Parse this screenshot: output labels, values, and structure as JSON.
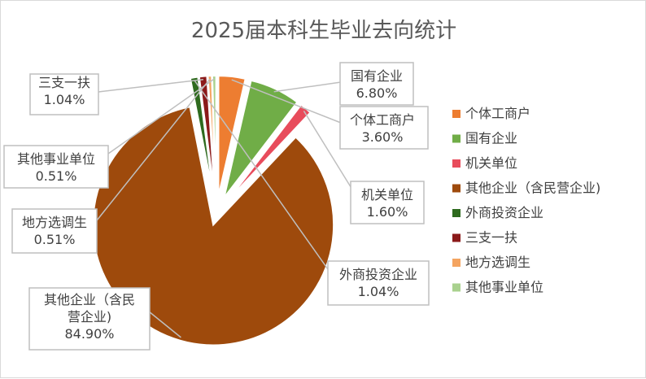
{
  "chart_data": {
    "type": "pie",
    "title": "2025届本科生毕业去向统计",
    "legend_position": "right",
    "slices": [
      {
        "name": "个体工商户",
        "value": 3.6,
        "label_lines": [
          "个体工商户",
          "3.60%"
        ],
        "color": "#ED7D31"
      },
      {
        "name": "国有企业",
        "value": 6.8,
        "label_lines": [
          "国有企业",
          "6.80%"
        ],
        "color": "#70AD47"
      },
      {
        "name": "机关单位",
        "value": 1.6,
        "label_lines": [
          "机关单位",
          "1.60%"
        ],
        "color": "#E84C5C"
      },
      {
        "name": "其他企业（含民营企业)",
        "value": 84.9,
        "label_lines": [
          "其他企业（含民",
          "营企业)",
          "84.90%"
        ],
        "color": "#9E4A0C"
      },
      {
        "name": "外商投资企业",
        "value": 1.04,
        "label_lines": [
          "外商投资企业",
          "1.04%"
        ],
        "color": "#2E6A1E"
      },
      {
        "name": "三支一扶",
        "value": 1.04,
        "label_lines": [
          "三支一扶",
          "1.04%"
        ],
        "color": "#8B1A1A"
      },
      {
        "name": "地方选调生",
        "value": 0.51,
        "label_lines": [
          "地方选调生",
          "0.51%"
        ],
        "color": "#F4A460"
      },
      {
        "name": "其他事业单位",
        "value": 0.51,
        "label_lines": [
          "其他事业单位",
          "0.51%"
        ],
        "color": "#A9D18E"
      }
    ]
  }
}
